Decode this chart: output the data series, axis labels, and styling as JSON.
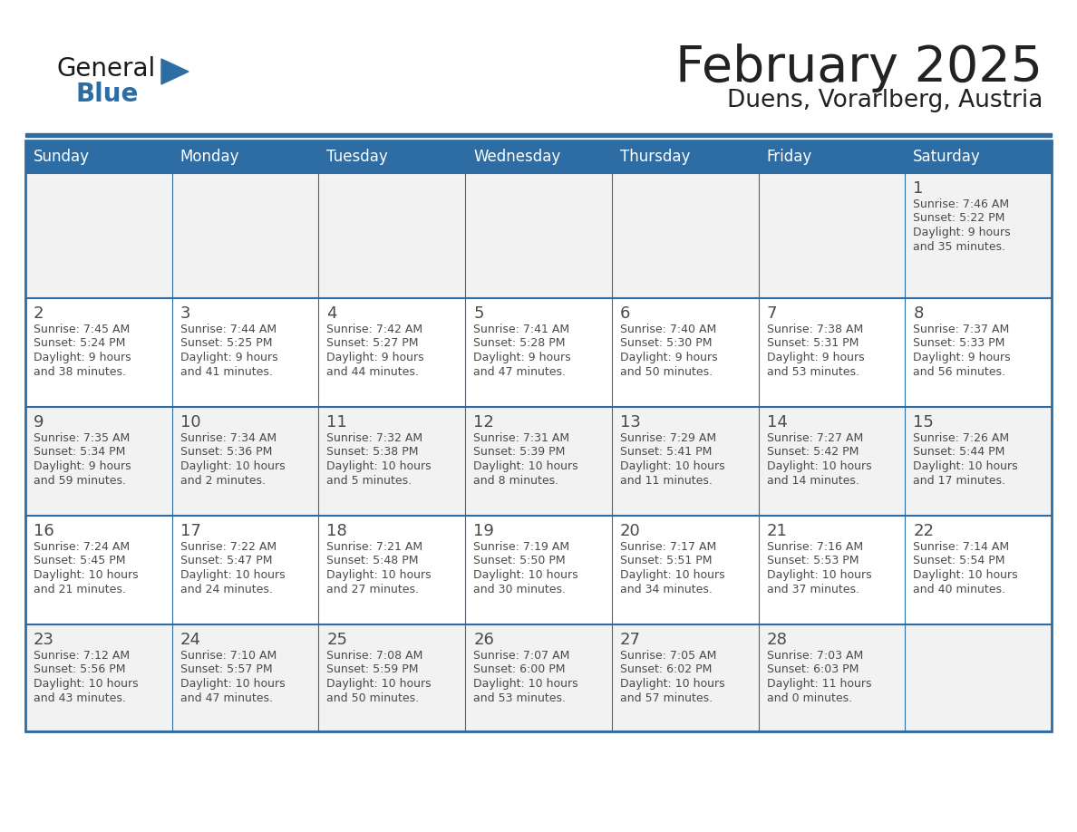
{
  "title": "February 2025",
  "subtitle": "Duens, Vorarlberg, Austria",
  "header_bg": "#2E6DA4",
  "header_text_color": "#FFFFFF",
  "cell_bg_odd": "#F2F2F2",
  "cell_bg_even": "#FFFFFF",
  "border_color": "#2E6DA4",
  "text_color": "#4a4a4a",
  "days_of_week": [
    "Sunday",
    "Monday",
    "Tuesday",
    "Wednesday",
    "Thursday",
    "Friday",
    "Saturday"
  ],
  "logo_general_color": "#1a1a1a",
  "logo_blue_color": "#2E6DA4",
  "calendar": [
    [
      null,
      null,
      null,
      null,
      null,
      null,
      {
        "day": 1,
        "sunrise": "7:46 AM",
        "sunset": "5:22 PM",
        "daylight": "9 hours\nand 35 minutes."
      }
    ],
    [
      {
        "day": 2,
        "sunrise": "7:45 AM",
        "sunset": "5:24 PM",
        "daylight": "9 hours\nand 38 minutes."
      },
      {
        "day": 3,
        "sunrise": "7:44 AM",
        "sunset": "5:25 PM",
        "daylight": "9 hours\nand 41 minutes."
      },
      {
        "day": 4,
        "sunrise": "7:42 AM",
        "sunset": "5:27 PM",
        "daylight": "9 hours\nand 44 minutes."
      },
      {
        "day": 5,
        "sunrise": "7:41 AM",
        "sunset": "5:28 PM",
        "daylight": "9 hours\nand 47 minutes."
      },
      {
        "day": 6,
        "sunrise": "7:40 AM",
        "sunset": "5:30 PM",
        "daylight": "9 hours\nand 50 minutes."
      },
      {
        "day": 7,
        "sunrise": "7:38 AM",
        "sunset": "5:31 PM",
        "daylight": "9 hours\nand 53 minutes."
      },
      {
        "day": 8,
        "sunrise": "7:37 AM",
        "sunset": "5:33 PM",
        "daylight": "9 hours\nand 56 minutes."
      }
    ],
    [
      {
        "day": 9,
        "sunrise": "7:35 AM",
        "sunset": "5:34 PM",
        "daylight": "9 hours\nand 59 minutes."
      },
      {
        "day": 10,
        "sunrise": "7:34 AM",
        "sunset": "5:36 PM",
        "daylight": "10 hours\nand 2 minutes."
      },
      {
        "day": 11,
        "sunrise": "7:32 AM",
        "sunset": "5:38 PM",
        "daylight": "10 hours\nand 5 minutes."
      },
      {
        "day": 12,
        "sunrise": "7:31 AM",
        "sunset": "5:39 PM",
        "daylight": "10 hours\nand 8 minutes."
      },
      {
        "day": 13,
        "sunrise": "7:29 AM",
        "sunset": "5:41 PM",
        "daylight": "10 hours\nand 11 minutes."
      },
      {
        "day": 14,
        "sunrise": "7:27 AM",
        "sunset": "5:42 PM",
        "daylight": "10 hours\nand 14 minutes."
      },
      {
        "day": 15,
        "sunrise": "7:26 AM",
        "sunset": "5:44 PM",
        "daylight": "10 hours\nand 17 minutes."
      }
    ],
    [
      {
        "day": 16,
        "sunrise": "7:24 AM",
        "sunset": "5:45 PM",
        "daylight": "10 hours\nand 21 minutes."
      },
      {
        "day": 17,
        "sunrise": "7:22 AM",
        "sunset": "5:47 PM",
        "daylight": "10 hours\nand 24 minutes."
      },
      {
        "day": 18,
        "sunrise": "7:21 AM",
        "sunset": "5:48 PM",
        "daylight": "10 hours\nand 27 minutes."
      },
      {
        "day": 19,
        "sunrise": "7:19 AM",
        "sunset": "5:50 PM",
        "daylight": "10 hours\nand 30 minutes."
      },
      {
        "day": 20,
        "sunrise": "7:17 AM",
        "sunset": "5:51 PM",
        "daylight": "10 hours\nand 34 minutes."
      },
      {
        "day": 21,
        "sunrise": "7:16 AM",
        "sunset": "5:53 PM",
        "daylight": "10 hours\nand 37 minutes."
      },
      {
        "day": 22,
        "sunrise": "7:14 AM",
        "sunset": "5:54 PM",
        "daylight": "10 hours\nand 40 minutes."
      }
    ],
    [
      {
        "day": 23,
        "sunrise": "7:12 AM",
        "sunset": "5:56 PM",
        "daylight": "10 hours\nand 43 minutes."
      },
      {
        "day": 24,
        "sunrise": "7:10 AM",
        "sunset": "5:57 PM",
        "daylight": "10 hours\nand 47 minutes."
      },
      {
        "day": 25,
        "sunrise": "7:08 AM",
        "sunset": "5:59 PM",
        "daylight": "10 hours\nand 50 minutes."
      },
      {
        "day": 26,
        "sunrise": "7:07 AM",
        "sunset": "6:00 PM",
        "daylight": "10 hours\nand 53 minutes."
      },
      {
        "day": 27,
        "sunrise": "7:05 AM",
        "sunset": "6:02 PM",
        "daylight": "10 hours\nand 57 minutes."
      },
      {
        "day": 28,
        "sunrise": "7:03 AM",
        "sunset": "6:03 PM",
        "daylight": "11 hours\nand 0 minutes."
      },
      null
    ]
  ]
}
